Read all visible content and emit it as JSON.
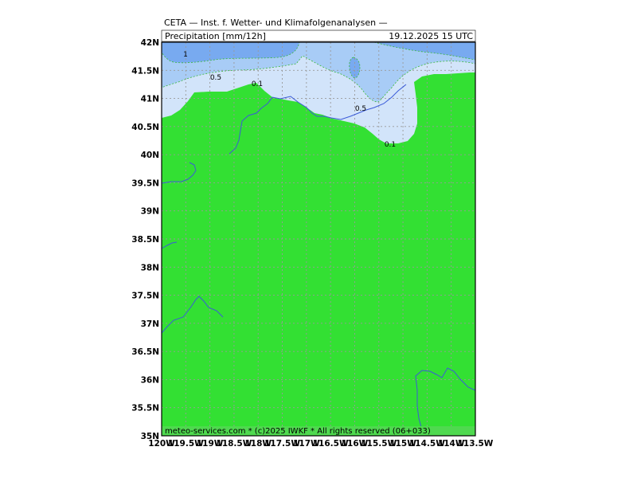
{
  "header": {
    "title": "CETA — Inst. f. Wetter- und Klimafolgenanalysen —",
    "parameter": "Precipitation [mm/12h]",
    "valid_time": "19.12.2025 15 UTC"
  },
  "footer": {
    "credit": "meteo-services.com * (c)2025 IWKF * All rights reserved (06+033)"
  },
  "axes": {
    "lat_labels": [
      "42N",
      "41.5N",
      "41N",
      "40.5N",
      "40N",
      "39.5N",
      "39N",
      "38.5N",
      "38N",
      "37.5N",
      "37N",
      "36.5N",
      "36N",
      "35.5N",
      "35N"
    ],
    "lon_labels": [
      "120W",
      "119.5W",
      "119W",
      "118.5W",
      "118W",
      "117.5W",
      "117W",
      "116.5W",
      "116W",
      "115.5W",
      "115W",
      "114.5W",
      "114W",
      "113.5W"
    ]
  },
  "contours": {
    "labels": [
      "1",
      "0.5",
      "0.1",
      "0.5",
      "0.1"
    ]
  },
  "colors": {
    "land": "#33e033",
    "precip_light": "#d2e4fa",
    "precip_mid": "#a8ccf6",
    "precip_heavy": "#78aaf0",
    "river": "#3b5bd8",
    "grid": "#999999",
    "footer_bg": "#4fd94f"
  }
}
